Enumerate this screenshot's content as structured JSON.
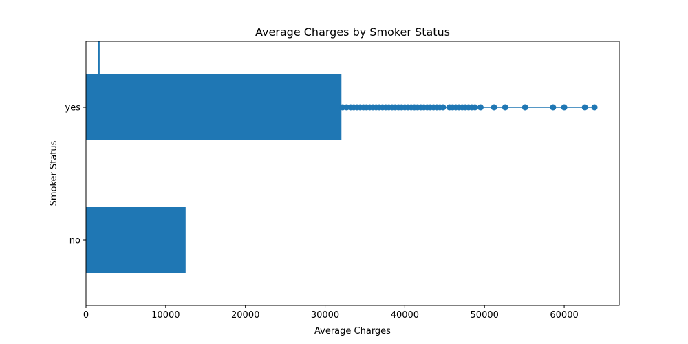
{
  "chart_data": {
    "type": "bar",
    "orientation": "horizontal",
    "title": "Average Charges by Smoker Status",
    "xlabel": "Average Charges",
    "ylabel": "Smoker Status",
    "categories": [
      "no",
      "yes"
    ],
    "values": [
      12500,
      32050
    ],
    "xlim": [
      0,
      66900
    ],
    "xticks": [
      0,
      10000,
      20000,
      30000,
      40000,
      50000,
      60000
    ],
    "xtick_labels": [
      "0",
      "10000",
      "20000",
      "30000",
      "40000",
      "50000",
      "60000"
    ],
    "grid": false,
    "bar_color": "#1f77b4",
    "overlay": {
      "type": "line-with-markers",
      "color": "#1f77b4",
      "category": "yes",
      "x_values": [
        32200,
        32700,
        33200,
        33600,
        34000,
        34400,
        34800,
        35200,
        35600,
        36000,
        36400,
        36800,
        37200,
        37600,
        38000,
        38400,
        38800,
        39200,
        39600,
        40000,
        40400,
        40800,
        41200,
        41600,
        42000,
        42400,
        42800,
        43200,
        43600,
        44000,
        44400,
        44800,
        45600,
        46000,
        46400,
        46800,
        47200,
        47600,
        48000,
        48400,
        48800,
        49500,
        51200,
        52600,
        55100,
        58600,
        60000,
        62600,
        63800
      ],
      "vertical_line": {
        "x": 1630,
        "from_category_above": "yes"
      }
    }
  }
}
